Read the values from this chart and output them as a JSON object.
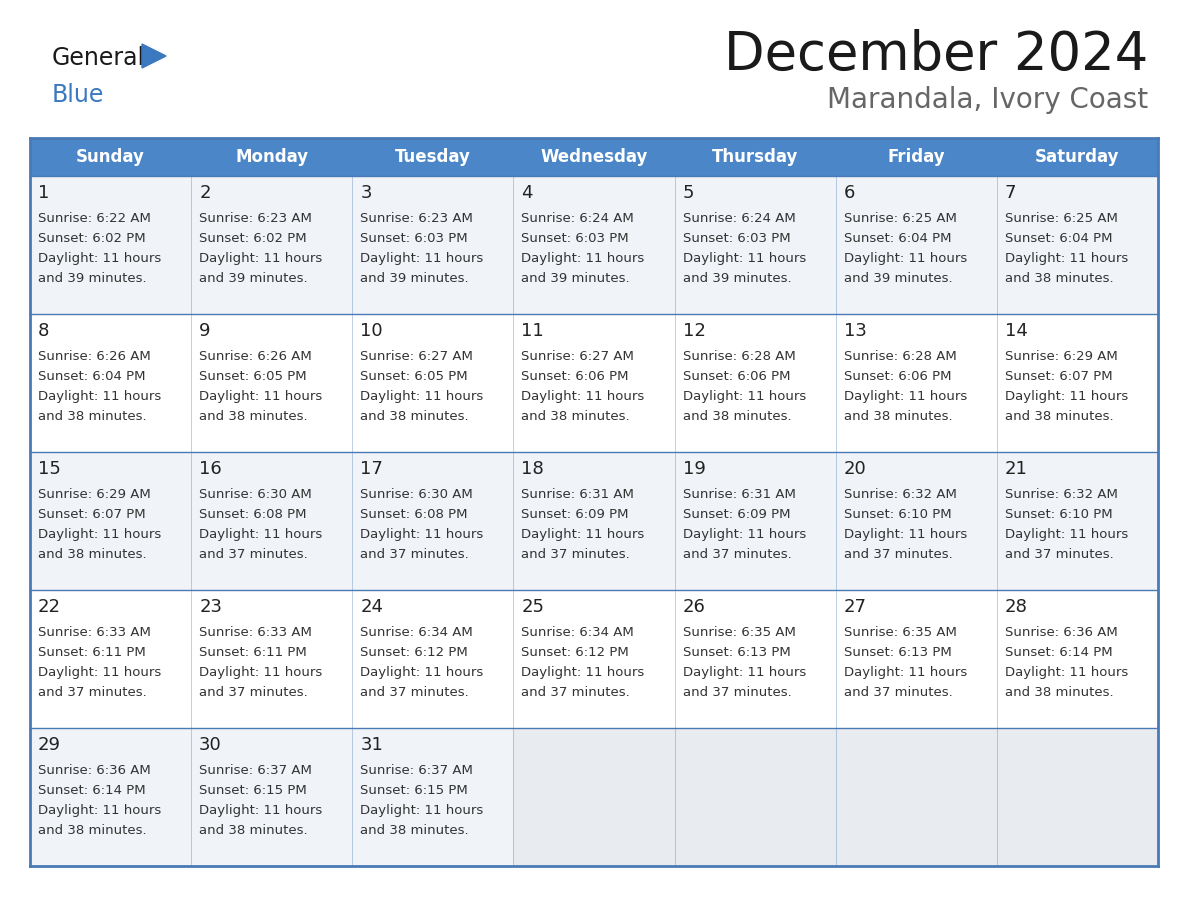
{
  "title": "December 2024",
  "subtitle": "Marandala, Ivory Coast",
  "days_of_week": [
    "Sunday",
    "Monday",
    "Tuesday",
    "Wednesday",
    "Thursday",
    "Friday",
    "Saturday"
  ],
  "header_bg": "#4a86c8",
  "header_text": "#ffffff",
  "row_bg_odd": "#f0f4f8",
  "row_bg_even": "#ffffff",
  "empty_cell_bg": "#e8ecf0",
  "border_color": "#4a7ab5",
  "day_number_color": "#222222",
  "cell_text_color": "#333333",
  "title_color": "#1a1a1a",
  "subtitle_color": "#666666",
  "logo_general_color": "#1a1a1a",
  "logo_blue_color": "#3a78c0",
  "weeks": [
    [
      {
        "day": 1,
        "sunrise": "6:22 AM",
        "sunset": "6:02 PM",
        "daylight_hours": 11,
        "daylight_minutes": 39
      },
      {
        "day": 2,
        "sunrise": "6:23 AM",
        "sunset": "6:02 PM",
        "daylight_hours": 11,
        "daylight_minutes": 39
      },
      {
        "day": 3,
        "sunrise": "6:23 AM",
        "sunset": "6:03 PM",
        "daylight_hours": 11,
        "daylight_minutes": 39
      },
      {
        "day": 4,
        "sunrise": "6:24 AM",
        "sunset": "6:03 PM",
        "daylight_hours": 11,
        "daylight_minutes": 39
      },
      {
        "day": 5,
        "sunrise": "6:24 AM",
        "sunset": "6:03 PM",
        "daylight_hours": 11,
        "daylight_minutes": 39
      },
      {
        "day": 6,
        "sunrise": "6:25 AM",
        "sunset": "6:04 PM",
        "daylight_hours": 11,
        "daylight_minutes": 39
      },
      {
        "day": 7,
        "sunrise": "6:25 AM",
        "sunset": "6:04 PM",
        "daylight_hours": 11,
        "daylight_minutes": 38
      }
    ],
    [
      {
        "day": 8,
        "sunrise": "6:26 AM",
        "sunset": "6:04 PM",
        "daylight_hours": 11,
        "daylight_minutes": 38
      },
      {
        "day": 9,
        "sunrise": "6:26 AM",
        "sunset": "6:05 PM",
        "daylight_hours": 11,
        "daylight_minutes": 38
      },
      {
        "day": 10,
        "sunrise": "6:27 AM",
        "sunset": "6:05 PM",
        "daylight_hours": 11,
        "daylight_minutes": 38
      },
      {
        "day": 11,
        "sunrise": "6:27 AM",
        "sunset": "6:06 PM",
        "daylight_hours": 11,
        "daylight_minutes": 38
      },
      {
        "day": 12,
        "sunrise": "6:28 AM",
        "sunset": "6:06 PM",
        "daylight_hours": 11,
        "daylight_minutes": 38
      },
      {
        "day": 13,
        "sunrise": "6:28 AM",
        "sunset": "6:06 PM",
        "daylight_hours": 11,
        "daylight_minutes": 38
      },
      {
        "day": 14,
        "sunrise": "6:29 AM",
        "sunset": "6:07 PM",
        "daylight_hours": 11,
        "daylight_minutes": 38
      }
    ],
    [
      {
        "day": 15,
        "sunrise": "6:29 AM",
        "sunset": "6:07 PM",
        "daylight_hours": 11,
        "daylight_minutes": 38
      },
      {
        "day": 16,
        "sunrise": "6:30 AM",
        "sunset": "6:08 PM",
        "daylight_hours": 11,
        "daylight_minutes": 37
      },
      {
        "day": 17,
        "sunrise": "6:30 AM",
        "sunset": "6:08 PM",
        "daylight_hours": 11,
        "daylight_minutes": 37
      },
      {
        "day": 18,
        "sunrise": "6:31 AM",
        "sunset": "6:09 PM",
        "daylight_hours": 11,
        "daylight_minutes": 37
      },
      {
        "day": 19,
        "sunrise": "6:31 AM",
        "sunset": "6:09 PM",
        "daylight_hours": 11,
        "daylight_minutes": 37
      },
      {
        "day": 20,
        "sunrise": "6:32 AM",
        "sunset": "6:10 PM",
        "daylight_hours": 11,
        "daylight_minutes": 37
      },
      {
        "day": 21,
        "sunrise": "6:32 AM",
        "sunset": "6:10 PM",
        "daylight_hours": 11,
        "daylight_minutes": 37
      }
    ],
    [
      {
        "day": 22,
        "sunrise": "6:33 AM",
        "sunset": "6:11 PM",
        "daylight_hours": 11,
        "daylight_minutes": 37
      },
      {
        "day": 23,
        "sunrise": "6:33 AM",
        "sunset": "6:11 PM",
        "daylight_hours": 11,
        "daylight_minutes": 37
      },
      {
        "day": 24,
        "sunrise": "6:34 AM",
        "sunset": "6:12 PM",
        "daylight_hours": 11,
        "daylight_minutes": 37
      },
      {
        "day": 25,
        "sunrise": "6:34 AM",
        "sunset": "6:12 PM",
        "daylight_hours": 11,
        "daylight_minutes": 37
      },
      {
        "day": 26,
        "sunrise": "6:35 AM",
        "sunset": "6:13 PM",
        "daylight_hours": 11,
        "daylight_minutes": 37
      },
      {
        "day": 27,
        "sunrise": "6:35 AM",
        "sunset": "6:13 PM",
        "daylight_hours": 11,
        "daylight_minutes": 37
      },
      {
        "day": 28,
        "sunrise": "6:36 AM",
        "sunset": "6:14 PM",
        "daylight_hours": 11,
        "daylight_minutes": 38
      }
    ],
    [
      {
        "day": 29,
        "sunrise": "6:36 AM",
        "sunset": "6:14 PM",
        "daylight_hours": 11,
        "daylight_minutes": 38
      },
      {
        "day": 30,
        "sunrise": "6:37 AM",
        "sunset": "6:15 PM",
        "daylight_hours": 11,
        "daylight_minutes": 38
      },
      {
        "day": 31,
        "sunrise": "6:37 AM",
        "sunset": "6:15 PM",
        "daylight_hours": 11,
        "daylight_minutes": 38
      },
      null,
      null,
      null,
      null
    ]
  ]
}
